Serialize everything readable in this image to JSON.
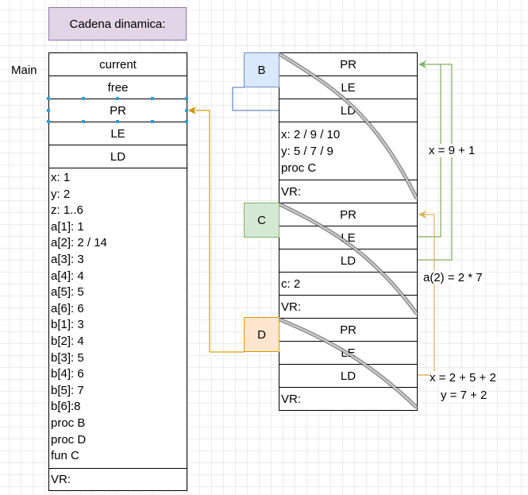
{
  "title": "Cadena dinamica:",
  "main": {
    "label": "Main",
    "cells": [
      "current",
      "free",
      "PR",
      "LE",
      "LD"
    ],
    "vars": [
      "x: 1",
      "y: 2",
      "z: 1..6",
      "a[1]: 1",
      "a[2]: 2 / 14",
      "a[3]: 3",
      "a[4]: 4",
      "a[5]: 5",
      "a[6]: 6",
      "b[1]: 3",
      "b[2]: 4",
      "b[3]: 5",
      "b[4]: 6",
      "b[5]: 7",
      "b[6]:8",
      "proc B",
      "proc D",
      "fun C"
    ],
    "vr": "VR:"
  },
  "frames": [
    {
      "label": "B",
      "cells": [
        "PR",
        "LE",
        "LD"
      ],
      "vars": [
        "x: 2 / 9 / 10",
        "y: 5 / 7 / 9",
        "proc C"
      ],
      "vr": "VR:"
    },
    {
      "label": "C",
      "cells": [
        "PR",
        "LE",
        "LD"
      ],
      "vars": [
        "c: 2"
      ],
      "vr": "VR:"
    },
    {
      "label": "D",
      "cells": [
        "PR",
        "LE",
        "LD"
      ],
      "vars": [],
      "vr": "VR:"
    }
  ],
  "annotations": {
    "x_b": "x = 9 + 1",
    "a2": "a(2) = 2 * 7",
    "x_d": "x = 2 + 5 + 2",
    "y_d": "y = 7 + 2"
  },
  "colors": {
    "title_fill": "#e1d5e7",
    "title_stroke": "#9673a6",
    "b_fill": "#dae8fc",
    "b_stroke": "#6c8ebf",
    "c_fill": "#d5e8d4",
    "c_stroke": "#82b366",
    "d_fill": "#ffe6cc",
    "d_stroke": "#d79b00",
    "green_line": "#82b366",
    "orange_line": "#d6b656",
    "blue_line": "#6c8ebf",
    "gold_line": "#d6a01c"
  }
}
